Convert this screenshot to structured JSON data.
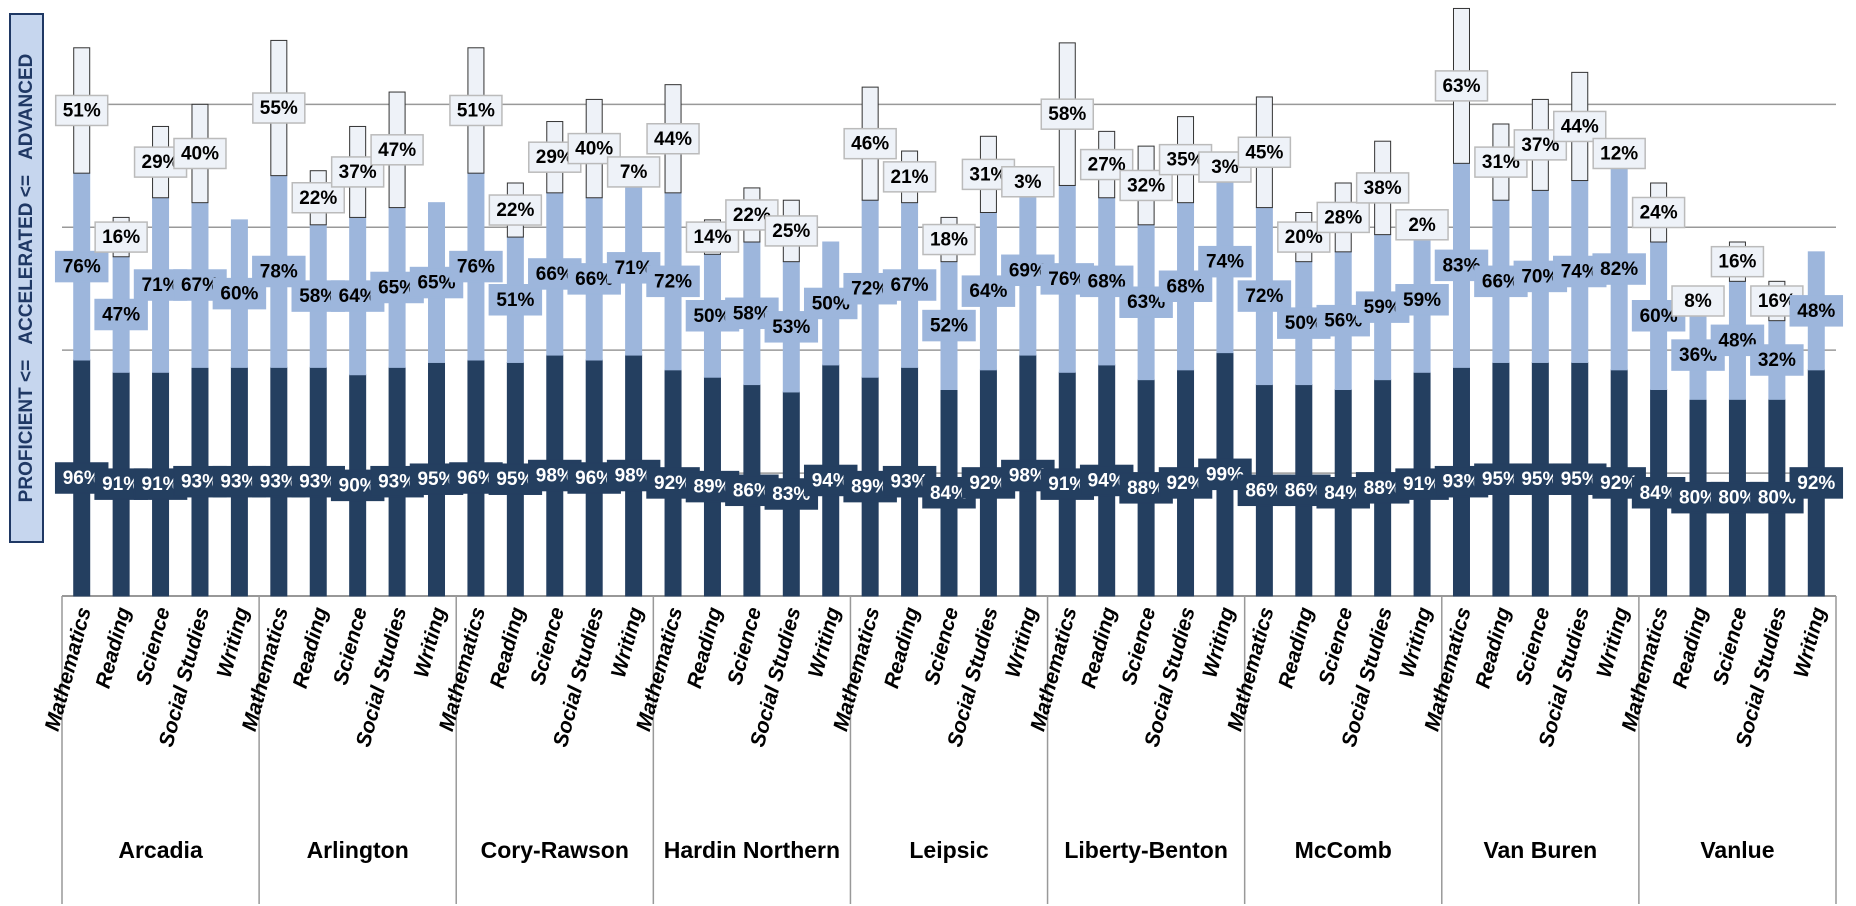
{
  "chart_data": {
    "type": "stacked_bar",
    "y_axis_label": "PROFICIENT <=   ACCELERATED <=   ADVANCED",
    "groups": [
      "Arcadia",
      "Arlington",
      "Cory-Rawson",
      "Hardin Northern",
      "Leipsic",
      "Liberty-Benton",
      "McComb",
      "Van Buren",
      "Vanlue"
    ],
    "categories": [
      "Mathematics",
      "Reading",
      "Science",
      "Social Studies",
      "Writing",
      "Mathematics",
      "Reading",
      "Science",
      "Social Studies",
      "Writing",
      "Mathematics",
      "Reading",
      "Science",
      "Social Studies",
      "Writing",
      "Mathematics",
      "Reading",
      "Science",
      "Social Studies",
      "Writing",
      "Mathematics",
      "Reading",
      "Science",
      "Social Studies",
      "Writing",
      "Mathematics",
      "Reading",
      "Science",
      "Social Studies",
      "Writing",
      "Mathematics",
      "Reading",
      "Science",
      "Social Studies",
      "Writing",
      "Mathematics",
      "Reading",
      "Science",
      "Social Studies",
      "Writing",
      "Mathematics",
      "Reading",
      "Science",
      "Social Studies",
      "Writing"
    ],
    "series": [
      {
        "color": "#243f60",
        "values": [
          96,
          91,
          91,
          93,
          93,
          93,
          93,
          90,
          93,
          95,
          96,
          95,
          98,
          96,
          98,
          92,
          89,
          86,
          83,
          94,
          89,
          93,
          84,
          92,
          98,
          91,
          94,
          88,
          92,
          99,
          86,
          86,
          84,
          88,
          91,
          93,
          95,
          95,
          95,
          92,
          84,
          80,
          80,
          80,
          92
        ],
        "value_labels": [
          "96%",
          "91%",
          "91%",
          "93%",
          "93%",
          "93%",
          "93%",
          "90%",
          "93%",
          "95%",
          "96%",
          "95%",
          "98%",
          "96%",
          "98%",
          "92%",
          "89%",
          "86%",
          "83%",
          "94%",
          "89%",
          "93%",
          "84%",
          "92%",
          "98%",
          "91%",
          "94%",
          "88%",
          "92%",
          "99%",
          "86%",
          "86%",
          "84%",
          "88%",
          "91%",
          "93%",
          "95%",
          "95%",
          "95%",
          "92%",
          "84%",
          "80%",
          "80%",
          "80%",
          "92%"
        ]
      },
      {
        "color": "#9db6dc",
        "values": [
          76,
          47,
          71,
          67,
          60,
          78,
          58,
          64,
          65,
          65,
          76,
          51,
          66,
          66,
          71,
          72,
          50,
          58,
          53,
          50,
          72,
          67,
          52,
          64,
          69,
          76,
          68,
          63,
          68,
          74,
          72,
          50,
          56,
          59,
          59,
          83,
          66,
          70,
          74,
          82,
          60,
          36,
          48,
          32,
          48
        ],
        "value_labels": [
          "76%",
          "47%",
          "71%",
          "67%",
          "60%",
          "78%",
          "58%",
          "64%",
          "65%",
          "65%",
          "76%",
          "51%",
          "66%",
          "66%",
          "71%",
          "72%",
          "50%",
          "58%",
          "53%",
          "50%",
          "72%",
          "67%",
          "52%",
          "64%",
          "69%",
          "76%",
          "68%",
          "63%",
          "68%",
          "74%",
          "72%",
          "50%",
          "56%",
          "59%",
          "59%",
          "83%",
          "66%",
          "70%",
          "74%",
          "82%",
          "60%",
          "36%",
          "48%",
          "32%",
          "48%"
        ]
      },
      {
        "color": "#eef2f8",
        "values": [
          51,
          16,
          29,
          40,
          null,
          55,
          22,
          37,
          47,
          null,
          51,
          22,
          29,
          40,
          7,
          44,
          14,
          22,
          25,
          null,
          46,
          21,
          18,
          31,
          3,
          58,
          27,
          32,
          35,
          3,
          45,
          20,
          28,
          38,
          2,
          63,
          31,
          37,
          44,
          12,
          24,
          8,
          16,
          16,
          null
        ],
        "value_labels": [
          "51%",
          "16%",
          "29%",
          "40%",
          null,
          "55%",
          "22%",
          "37%",
          "47%",
          null,
          "51%",
          "22%",
          "29%",
          "40%",
          "7%",
          "44%",
          "14%",
          "22%",
          "25%",
          null,
          "46%",
          "21%",
          "18%",
          "31%",
          "3%",
          "58%",
          "27%",
          "32%",
          "35%",
          "3%",
          "45%",
          "20%",
          "28%",
          "38%",
          "2%",
          "63%",
          "31%",
          "37%",
          "44%",
          "12%",
          "24%",
          "8%",
          "16%",
          "16%",
          null
        ]
      }
    ],
    "ylim": [
      0,
      240
    ],
    "yticks": [
      50,
      100,
      150,
      200
    ],
    "grid": true
  }
}
